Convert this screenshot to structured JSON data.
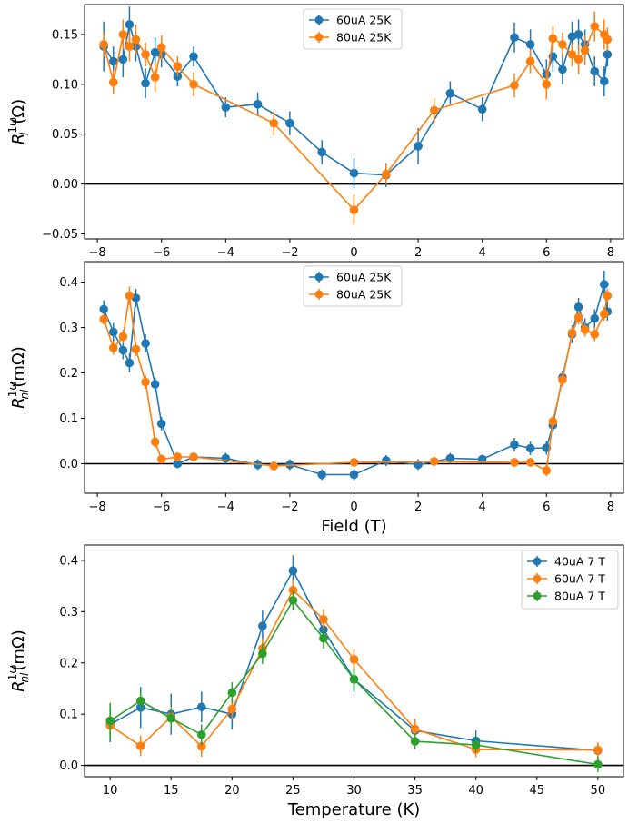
{
  "colors": {
    "blue": "#1f77b4",
    "orange": "#ff7f0e",
    "green": "#2ca02c",
    "zero_line": "#000000",
    "axes": "#000000",
    "legend_border": "#cccccc"
  },
  "chart_data": [
    {
      "type": "line",
      "title": "",
      "xlabel": "",
      "ylabel": "R_l^{1ω}(Ω)",
      "ylabel_main": "R",
      "ylabel_sup": "1ω",
      "ylabel_sub": "l",
      "ylabel_rest": "(Ω)",
      "xlim": [
        -8.4,
        8.4
      ],
      "ylim": [
        -0.055,
        0.18
      ],
      "xticks": [
        -8,
        -6,
        -4,
        -2,
        0,
        2,
        4,
        6,
        8
      ],
      "xtick_labels": [
        "−8",
        "−6",
        "−4",
        "−2",
        "0",
        "2",
        "4",
        "6",
        "8"
      ],
      "yticks": [
        -0.05,
        0.0,
        0.05,
        0.1,
        0.15
      ],
      "ytick_labels": [
        "−0.05",
        "0.00",
        "0.05",
        "0.10",
        "0.15"
      ],
      "hline": 0,
      "legend": "top-center",
      "series": [
        {
          "name": "60uA 25K",
          "color": "blue",
          "x": [
            -7.8,
            -7.5,
            -7.2,
            -7.0,
            -6.8,
            -6.5,
            -6.2,
            -6.0,
            -5.5,
            -5.0,
            -4.0,
            -3.0,
            -2.0,
            -1.0,
            0.0,
            1.0,
            2.0,
            3.0,
            4.0,
            5.0,
            5.5,
            6.0,
            6.2,
            6.5,
            6.8,
            7.0,
            7.2,
            7.5,
            7.8,
            7.9
          ],
          "y": [
            0.138,
            0.123,
            0.125,
            0.16,
            0.138,
            0.101,
            0.132,
            0.13,
            0.108,
            0.128,
            0.077,
            0.08,
            0.061,
            0.032,
            0.011,
            0.009,
            0.038,
            0.091,
            0.075,
            0.147,
            0.14,
            0.11,
            0.128,
            0.115,
            0.148,
            0.15,
            0.14,
            0.113,
            0.103,
            0.13
          ],
          "err": [
            0.025,
            0.015,
            0.018,
            0.018,
            0.015,
            0.015,
            0.015,
            0.013,
            0.01,
            0.01,
            0.01,
            0.012,
            0.012,
            0.012,
            0.015,
            0.012,
            0.018,
            0.012,
            0.012,
            0.015,
            0.015,
            0.015,
            0.015,
            0.015,
            0.015,
            0.015,
            0.015,
            0.015,
            0.015,
            0.012
          ]
        },
        {
          "name": "80uA 25K",
          "color": "orange",
          "x": [
            -7.8,
            -7.5,
            -7.2,
            -7.0,
            -6.8,
            -6.5,
            -6.2,
            -6.0,
            -5.5,
            -5.0,
            -2.5,
            0.0,
            1.0,
            2.5,
            5.0,
            5.5,
            6.0,
            6.2,
            6.5,
            6.8,
            7.0,
            7.2,
            7.5,
            7.8,
            7.9
          ],
          "y": [
            0.14,
            0.102,
            0.15,
            0.138,
            0.145,
            0.13,
            0.107,
            0.137,
            0.118,
            0.1,
            0.061,
            -0.026,
            0.01,
            0.074,
            0.099,
            0.123,
            0.1,
            0.146,
            0.14,
            0.13,
            0.125,
            0.134,
            0.158,
            0.15,
            0.145
          ],
          "err": [
            0.012,
            0.012,
            0.015,
            0.015,
            0.015,
            0.012,
            0.015,
            0.012,
            0.01,
            0.012,
            0.012,
            0.015,
            0.01,
            0.012,
            0.012,
            0.012,
            0.015,
            0.012,
            0.012,
            0.012,
            0.015,
            0.015,
            0.015,
            0.015,
            0.012
          ]
        }
      ]
    },
    {
      "type": "line",
      "title": "",
      "xlabel": "Field (T)",
      "ylabel": "R_nl^{1ω}(mΩ)",
      "ylabel_main": "R",
      "ylabel_sup": "1ω",
      "ylabel_sub": "nl",
      "ylabel_rest": "(mΩ)",
      "xlim": [
        -8.4,
        8.4
      ],
      "ylim": [
        -0.065,
        0.445
      ],
      "xticks": [
        -8,
        -6,
        -4,
        -2,
        0,
        2,
        4,
        6,
        8
      ],
      "xtick_labels": [
        "−8",
        "−6",
        "−4",
        "−2",
        "0",
        "2",
        "4",
        "6",
        "8"
      ],
      "yticks": [
        0.0,
        0.1,
        0.2,
        0.3,
        0.4
      ],
      "ytick_labels": [
        "0.0",
        "0.1",
        "0.2",
        "0.3",
        "0.4"
      ],
      "hline": 0,
      "legend": "top-center",
      "series": [
        {
          "name": "60uA 25K",
          "color": "blue",
          "x": [
            -7.8,
            -7.5,
            -7.2,
            -7.0,
            -6.8,
            -6.5,
            -6.2,
            -6.0,
            -5.5,
            -5.0,
            -4.0,
            -3.0,
            -2.0,
            -1.0,
            0.0,
            1.0,
            2.0,
            3.0,
            4.0,
            5.0,
            5.5,
            6.0,
            6.2,
            6.5,
            6.8,
            7.0,
            7.2,
            7.5,
            7.8,
            7.9
          ],
          "y": [
            0.34,
            0.29,
            0.25,
            0.222,
            0.365,
            0.265,
            0.175,
            0.088,
            0.0,
            0.015,
            0.012,
            -0.002,
            -0.002,
            -0.024,
            -0.024,
            0.007,
            -0.002,
            0.012,
            0.01,
            0.042,
            0.034,
            0.035,
            0.085,
            0.19,
            0.285,
            0.345,
            0.3,
            0.32,
            0.395,
            0.335
          ],
          "err": [
            0.02,
            0.02,
            0.02,
            0.02,
            0.02,
            0.02,
            0.015,
            0.015,
            0.01,
            0.01,
            0.012,
            0.012,
            0.012,
            0.012,
            0.012,
            0.012,
            0.012,
            0.012,
            0.01,
            0.015,
            0.015,
            0.015,
            0.015,
            0.015,
            0.02,
            0.02,
            0.02,
            0.02,
            0.03,
            0.02
          ]
        },
        {
          "name": "80uA 25K",
          "color": "orange",
          "x": [
            -7.8,
            -7.5,
            -7.2,
            -7.0,
            -6.8,
            -6.5,
            -6.2,
            -6.0,
            -5.5,
            -5.0,
            -2.5,
            0.0,
            2.5,
            5.0,
            5.5,
            6.0,
            6.2,
            6.5,
            6.8,
            7.0,
            7.2,
            7.5,
            7.8,
            7.9
          ],
          "y": [
            0.318,
            0.255,
            0.28,
            0.37,
            0.252,
            0.18,
            0.048,
            0.01,
            0.015,
            0.015,
            -0.005,
            0.003,
            0.005,
            0.003,
            0.003,
            -0.015,
            0.093,
            0.185,
            0.288,
            0.322,
            0.295,
            0.285,
            0.33,
            0.37
          ],
          "err": [
            0.012,
            0.015,
            0.015,
            0.02,
            0.015,
            0.015,
            0.012,
            0.01,
            0.01,
            0.01,
            0.01,
            0.01,
            0.01,
            0.01,
            0.01,
            0.012,
            0.012,
            0.015,
            0.015,
            0.015,
            0.015,
            0.015,
            0.015,
            0.015
          ]
        }
      ]
    },
    {
      "type": "line",
      "title": "",
      "xlabel": "Temperature (K)",
      "ylabel": "R_nl^{1ω}(mΩ)",
      "ylabel_main": "R",
      "ylabel_sup": "1ω",
      "ylabel_sub": "nl",
      "ylabel_rest": "(mΩ)",
      "xlim": [
        7.9,
        52.1
      ],
      "ylim": [
        -0.022,
        0.43
      ],
      "xticks": [
        10,
        15,
        20,
        25,
        30,
        35,
        40,
        45,
        50
      ],
      "xtick_labels": [
        "10",
        "15",
        "20",
        "25",
        "30",
        "35",
        "40",
        "45",
        "50"
      ],
      "yticks": [
        0.0,
        0.1,
        0.2,
        0.3,
        0.4
      ],
      "ytick_labels": [
        "0.0",
        "0.1",
        "0.2",
        "0.3",
        "0.4"
      ],
      "hline": 0,
      "legend": "top-right",
      "series": [
        {
          "name": "40uA 7 T",
          "color": "blue",
          "x": [
            10,
            12.5,
            15,
            17.5,
            20,
            22.5,
            25,
            27.5,
            30,
            35,
            40,
            50
          ],
          "y": [
            0.08,
            0.113,
            0.1,
            0.114,
            0.1,
            0.272,
            0.38,
            0.265,
            0.168,
            0.068,
            0.048,
            0.029
          ],
          "err": [
            0.035,
            0.04,
            0.04,
            0.03,
            0.03,
            0.03,
            0.03,
            0.025,
            0.025,
            0.02,
            0.02,
            0.015
          ]
        },
        {
          "name": "60uA 7 T",
          "color": "orange",
          "x": [
            10,
            12.5,
            15,
            17.5,
            20,
            22.5,
            25,
            27.5,
            30,
            35,
            40,
            50
          ],
          "y": [
            0.078,
            0.038,
            0.095,
            0.037,
            0.11,
            0.228,
            0.342,
            0.285,
            0.207,
            0.071,
            0.031,
            0.03
          ],
          "err": [
            0.02,
            0.02,
            0.02,
            0.02,
            0.02,
            0.02,
            0.02,
            0.02,
            0.02,
            0.02,
            0.015,
            0.015
          ]
        },
        {
          "name": "80uA 7 T",
          "color": "green",
          "x": [
            10,
            12.5,
            15,
            17.5,
            20,
            22.5,
            25,
            27.5,
            30,
            35,
            40,
            50
          ],
          "y": [
            0.087,
            0.126,
            0.092,
            0.06,
            0.142,
            0.218,
            0.322,
            0.248,
            0.168,
            0.047,
            0.04,
            0.002
          ],
          "err": [
            0.035,
            0.02,
            0.02,
            0.02,
            0.02,
            0.02,
            0.02,
            0.02,
            0.02,
            0.015,
            0.015,
            0.015
          ]
        }
      ]
    }
  ]
}
